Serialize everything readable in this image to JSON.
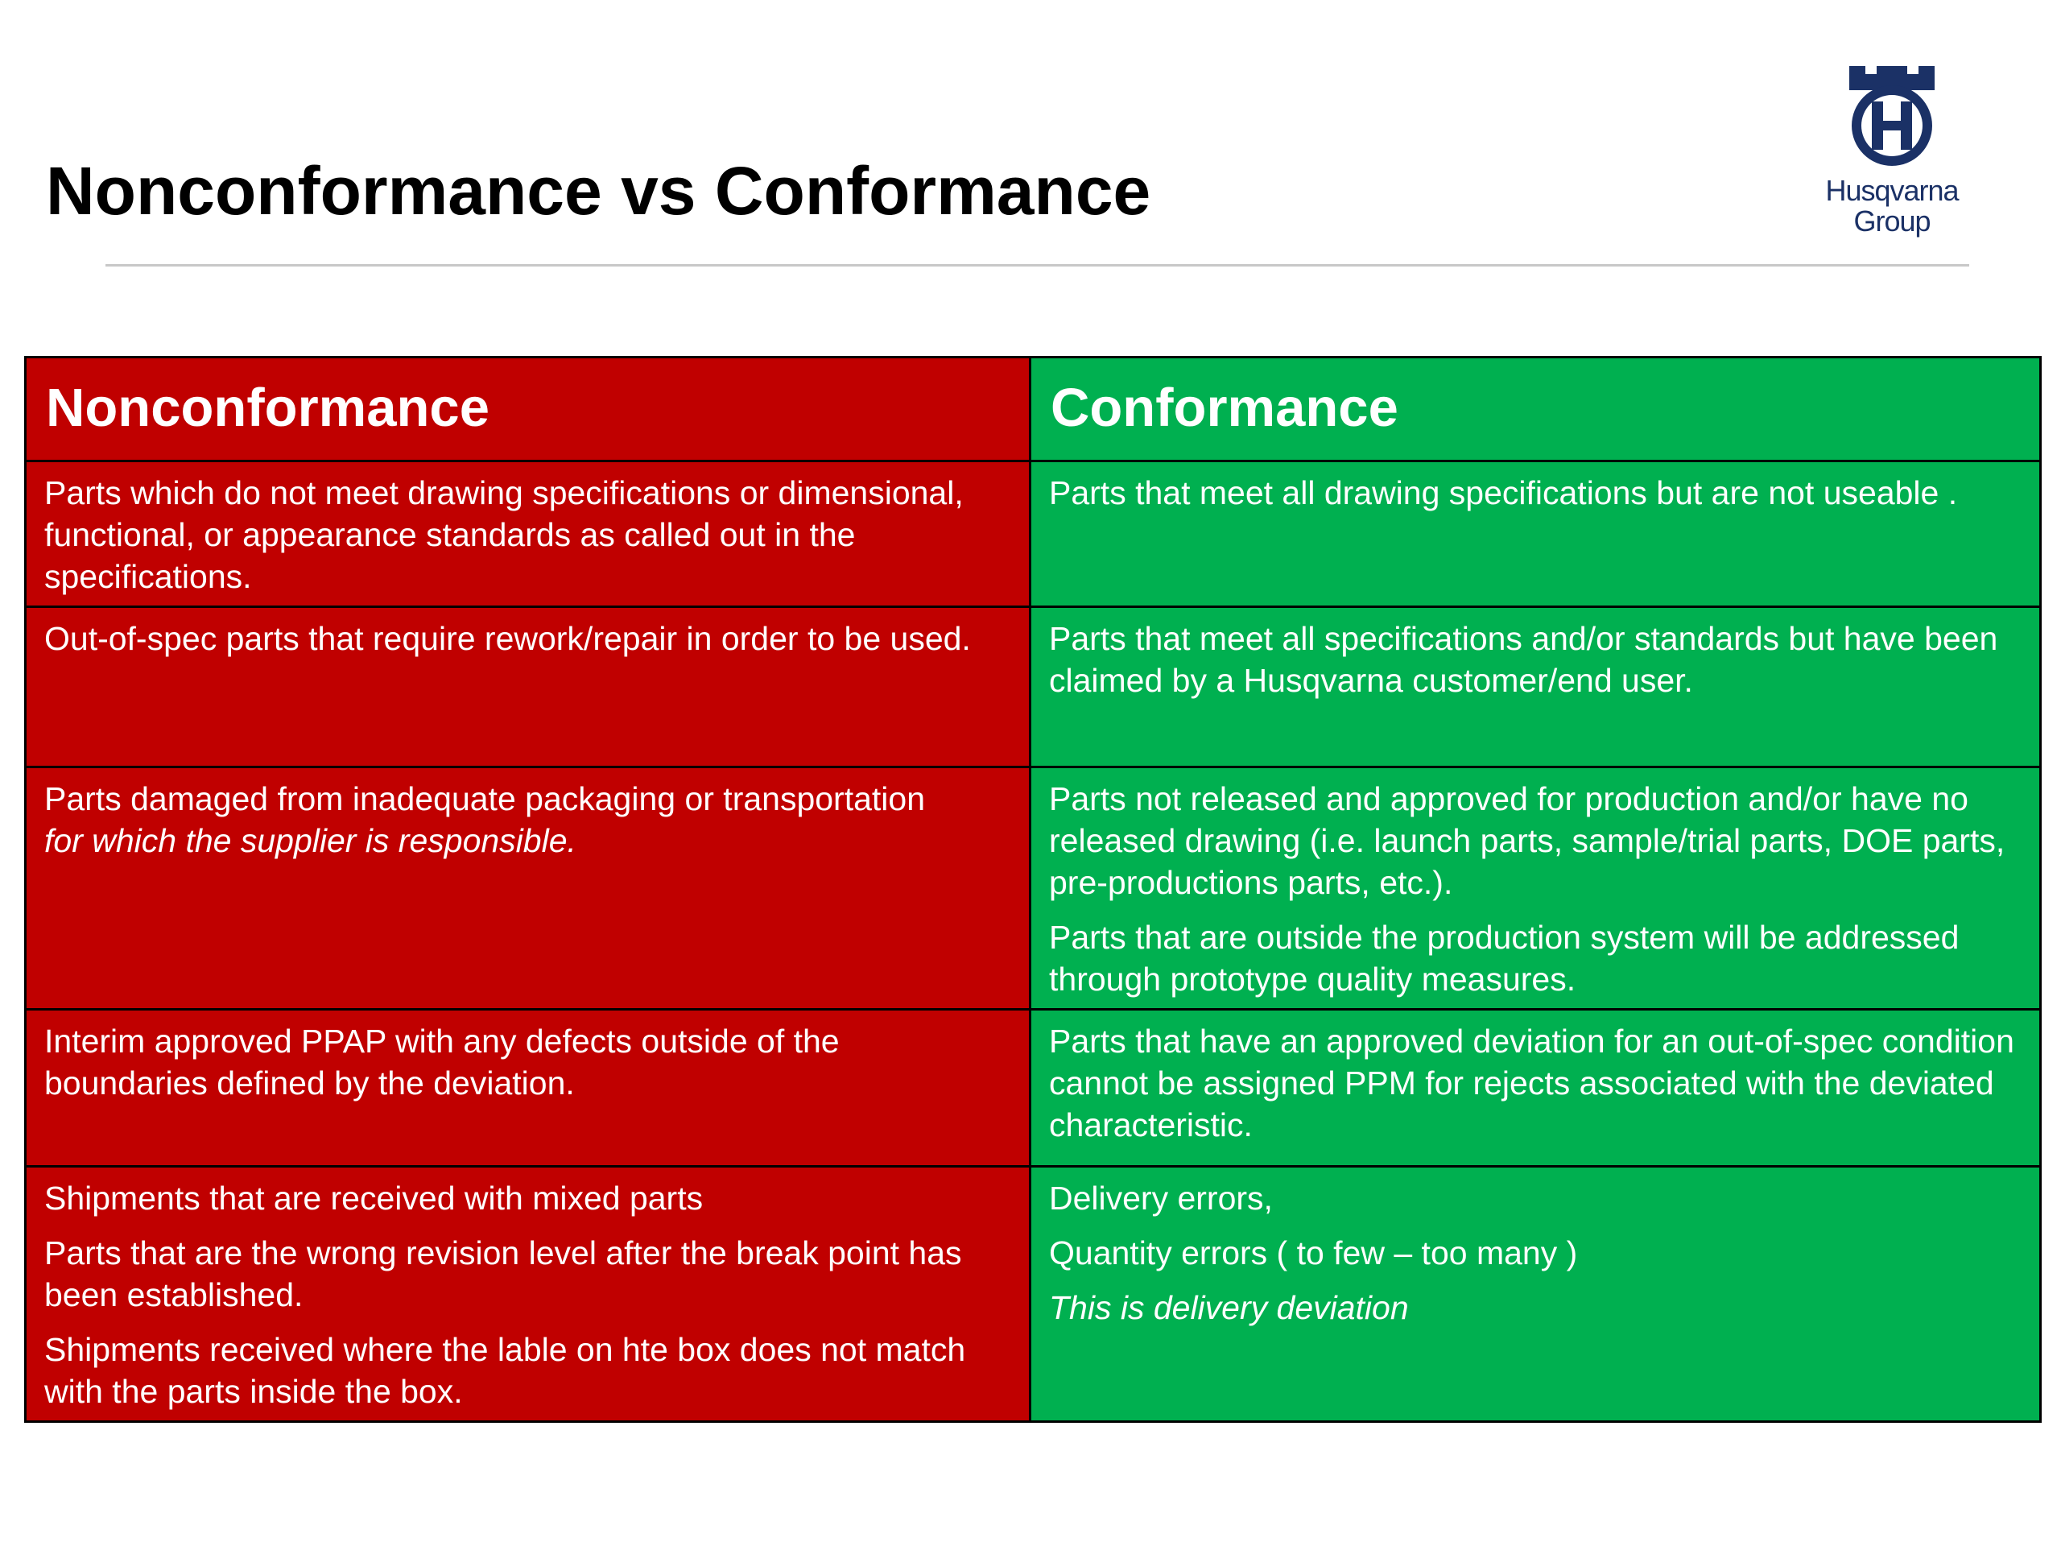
{
  "slide": {
    "title": "Nonconformance vs Conformance"
  },
  "logo": {
    "icon": "husqvarna-crown-h-icon",
    "line1": "Husqvarna",
    "line2": "Group",
    "color": "#1b3166"
  },
  "colors": {
    "nonconformance": "#c00000",
    "conformance": "#00b050"
  },
  "table": {
    "headers": {
      "nonconformance": "Nonconformance",
      "conformance": "Conformance"
    },
    "rows": [
      {
        "nonconformance": [
          "Parts which do not meet drawing specifications or dimensional, functional, or appearance standards as called out in the specifications."
        ],
        "conformance": [
          "Parts that meet all drawing specifications but are not useable ."
        ]
      },
      {
        "nonconformance": [
          "Out-of-spec parts that require rework/repair in order to be used."
        ],
        "conformance": [
          "Parts that meet all specifications and/or standards but have been claimed by a Husqvarna customer/end user."
        ]
      },
      {
        "nonconformance_text": "Parts damaged from inadequate packaging or transportation",
        "nonconformance_italic": "for which the supplier is responsible.",
        "conformance": [
          "Parts not released and approved for production and/or have no released drawing (i.e. launch parts, sample/trial parts, DOE parts, pre-productions parts, etc.).",
          "Parts that are outside the production system will be addressed through prototype quality measures."
        ]
      },
      {
        "nonconformance": [
          "Interim approved PPAP with any defects outside of the boundaries defined by the deviation."
        ],
        "conformance": [
          "Parts that have an approved deviation for an out-of-spec condition cannot be assigned PPM for rejects associated with the deviated characteristic."
        ]
      },
      {
        "nonconformance": [
          "Shipments that are received with mixed parts",
          "Parts that are the wrong revision level after the break point has been established.",
          "Shipments received where the lable on hte box does not match with the parts inside the box."
        ],
        "conformance": [
          "Delivery errors,",
          "Quantity errors ( to few – too many )"
        ],
        "conformance_italic": "This is delivery deviation"
      }
    ]
  }
}
